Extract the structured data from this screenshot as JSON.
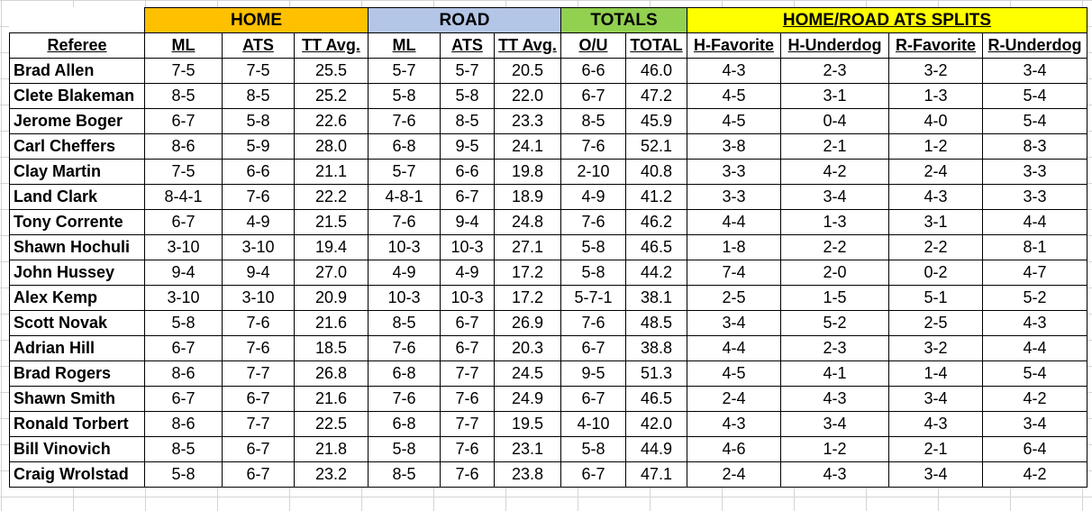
{
  "groups": {
    "home": "HOME",
    "road": "ROAD",
    "totals": "TOTALS",
    "splits": "HOME/ROAD ATS SPLITS"
  },
  "colors": {
    "home": "#ffc000",
    "road": "#b4c6e7",
    "totals": "#92d050",
    "splits": "#ffff00"
  },
  "headers": [
    "Referee",
    "ML",
    "ATS",
    "TT Avg.",
    "ML",
    "ATS",
    "TT Avg.",
    "O/U",
    "TOTAL",
    "H-Favorite",
    "H-Underdog",
    "R-Favorite",
    "R-Underdog"
  ],
  "rows": [
    [
      "Brad Allen",
      "7-5",
      "7-5",
      "25.5",
      "5-7",
      "5-7",
      "20.5",
      "6-6",
      "46.0",
      "4-3",
      "2-3",
      "3-2",
      "3-4"
    ],
    [
      "Clete Blakeman",
      "8-5",
      "8-5",
      "25.2",
      "5-8",
      "5-8",
      "22.0",
      "6-7",
      "47.2",
      "4-5",
      "3-1",
      "1-3",
      "5-4"
    ],
    [
      "Jerome Boger",
      "6-7",
      "5-8",
      "22.6",
      "7-6",
      "8-5",
      "23.3",
      "8-5",
      "45.9",
      "4-5",
      "0-4",
      "4-0",
      "5-4"
    ],
    [
      "Carl Cheffers",
      "8-6",
      "5-9",
      "28.0",
      "6-8",
      "9-5",
      "24.1",
      "7-6",
      "52.1",
      "3-8",
      "2-1",
      "1-2",
      "8-3"
    ],
    [
      "Clay Martin",
      "7-5",
      "6-6",
      "21.1",
      "5-7",
      "6-6",
      "19.8",
      "2-10",
      "40.8",
      "3-3",
      "4-2",
      "2-4",
      "3-3"
    ],
    [
      "Land Clark",
      "8-4-1",
      "7-6",
      "22.2",
      "4-8-1",
      "6-7",
      "18.9",
      "4-9",
      "41.2",
      "3-3",
      "3-4",
      "4-3",
      "3-3"
    ],
    [
      "Tony Corrente",
      "6-7",
      "4-9",
      "21.5",
      "7-6",
      "9-4",
      "24.8",
      "7-6",
      "46.2",
      "4-4",
      "1-3",
      "3-1",
      "4-4"
    ],
    [
      "Shawn Hochuli",
      "3-10",
      "3-10",
      "19.4",
      "10-3",
      "10-3",
      "27.1",
      "5-8",
      "46.5",
      "1-8",
      "2-2",
      "2-2",
      "8-1"
    ],
    [
      "John Hussey",
      "9-4",
      "9-4",
      "27.0",
      "4-9",
      "4-9",
      "17.2",
      "5-8",
      "44.2",
      "7-4",
      "2-0",
      "0-2",
      "4-7"
    ],
    [
      "Alex Kemp",
      "3-10",
      "3-10",
      "20.9",
      "10-3",
      "10-3",
      "17.2",
      "5-7-1",
      "38.1",
      "2-5",
      "1-5",
      "5-1",
      "5-2"
    ],
    [
      "Scott Novak",
      "5-8",
      "7-6",
      "21.6",
      "8-5",
      "6-7",
      "26.9",
      "7-6",
      "48.5",
      "3-4",
      "5-2",
      "2-5",
      "4-3"
    ],
    [
      "Adrian Hill",
      "6-7",
      "7-6",
      "18.5",
      "7-6",
      "6-7",
      "20.3",
      "6-7",
      "38.8",
      "4-4",
      "2-3",
      "3-2",
      "4-4"
    ],
    [
      "Brad Rogers",
      "8-6",
      "7-7",
      "26.8",
      "6-8",
      "7-7",
      "24.5",
      "9-5",
      "51.3",
      "4-5",
      "4-1",
      "1-4",
      "5-4"
    ],
    [
      "Shawn Smith",
      "6-7",
      "6-7",
      "21.6",
      "7-6",
      "7-6",
      "24.9",
      "6-7",
      "46.5",
      "2-4",
      "4-3",
      "3-4",
      "4-2"
    ],
    [
      "Ronald Torbert",
      "8-6",
      "7-7",
      "22.5",
      "6-8",
      "7-7",
      "19.5",
      "4-10",
      "42.0",
      "4-3",
      "3-4",
      "4-3",
      "3-4"
    ],
    [
      "Bill Vinovich",
      "8-5",
      "6-7",
      "21.8",
      "5-8",
      "7-6",
      "23.1",
      "5-8",
      "44.9",
      "4-6",
      "1-2",
      "2-1",
      "6-4"
    ],
    [
      "Craig Wrolstad",
      "5-8",
      "6-7",
      "23.2",
      "8-5",
      "7-6",
      "23.8",
      "6-7",
      "47.1",
      "2-4",
      "4-3",
      "3-4",
      "4-2"
    ]
  ]
}
